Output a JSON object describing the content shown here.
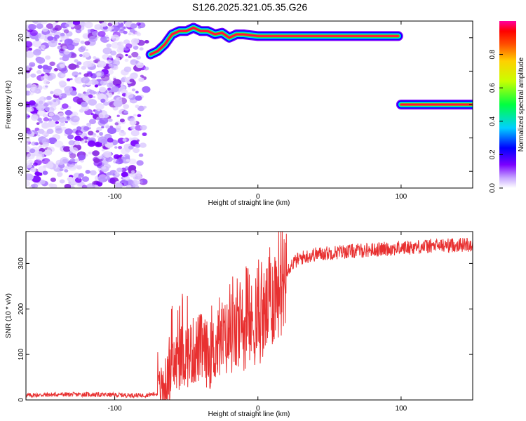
{
  "title": "S126.2025.321.05.35.G26",
  "chart_data": [
    {
      "type": "heatmap",
      "xlabel": "Height of straight line (km)",
      "ylabel": "Frequency (Hz)",
      "xlim": [
        -162,
        150
      ],
      "ylim": [
        -25,
        25
      ],
      "xticks": [
        -100,
        0,
        100
      ],
      "yticks": [
        -20,
        -10,
        0,
        10,
        20
      ],
      "colorbar": {
        "label": "Normalized spectral amplitude",
        "range": [
          0,
          1
        ],
        "ticks": [
          "0.0",
          "0.2",
          "0.4",
          "0.6",
          "0.8"
        ]
      },
      "noise_region": {
        "x": [
          -162,
          -75
        ],
        "y": [
          -25,
          25
        ]
      },
      "tracks": [
        {
          "name": "",
          "points": [
            [
              -75,
              15
            ],
            [
              -70,
              16
            ],
            [
              -65,
              18
            ],
            [
              -60,
              21
            ],
            [
              -55,
              22
            ],
            [
              -50,
              22
            ],
            [
              -45,
              23
            ],
            [
              -40,
              22
            ],
            [
              -35,
              22
            ],
            [
              -30,
              21
            ],
            [
              -25,
              21.5
            ],
            [
              -20,
              20
            ],
            [
              -15,
              21
            ],
            [
              -10,
              21
            ],
            [
              0,
              20.5
            ],
            [
              50,
              20.5
            ],
            [
              75,
              20.5
            ],
            [
              98,
              20.5
            ]
          ]
        },
        {
          "name": "",
          "points": [
            [
              100,
              0
            ],
            [
              150,
              0
            ]
          ]
        }
      ]
    },
    {
      "type": "line",
      "xlabel": "Height of straight line (km)",
      "ylabel": "SNR (10 * v/v)",
      "xlim": [
        -162,
        150
      ],
      "ylim": [
        0,
        370
      ],
      "xticks": [
        -100,
        0,
        100
      ],
      "yticks": [
        0,
        100,
        200,
        300
      ],
      "color": "#e83030",
      "envelope": [
        [
          -162,
          10
        ],
        [
          -140,
          12
        ],
        [
          -120,
          12
        ],
        [
          -100,
          11
        ],
        [
          -80,
          10
        ],
        [
          -70,
          14
        ],
        [
          -64,
          40
        ],
        [
          -58,
          80
        ],
        [
          -52,
          100
        ],
        [
          -46,
          105
        ],
        [
          -40,
          115
        ],
        [
          -34,
          95
        ],
        [
          -28,
          120
        ],
        [
          -22,
          135
        ],
        [
          -16,
          140
        ],
        [
          -10,
          155
        ],
        [
          -5,
          165
        ],
        [
          0,
          170
        ],
        [
          4,
          185
        ],
        [
          8,
          210
        ],
        [
          12,
          240
        ],
        [
          16,
          265
        ],
        [
          20,
          285
        ],
        [
          25,
          302
        ],
        [
          30,
          312
        ],
        [
          40,
          320
        ],
        [
          60,
          326
        ],
        [
          80,
          330
        ],
        [
          100,
          334
        ],
        [
          120,
          338
        ],
        [
          150,
          342
        ]
      ]
    }
  ]
}
